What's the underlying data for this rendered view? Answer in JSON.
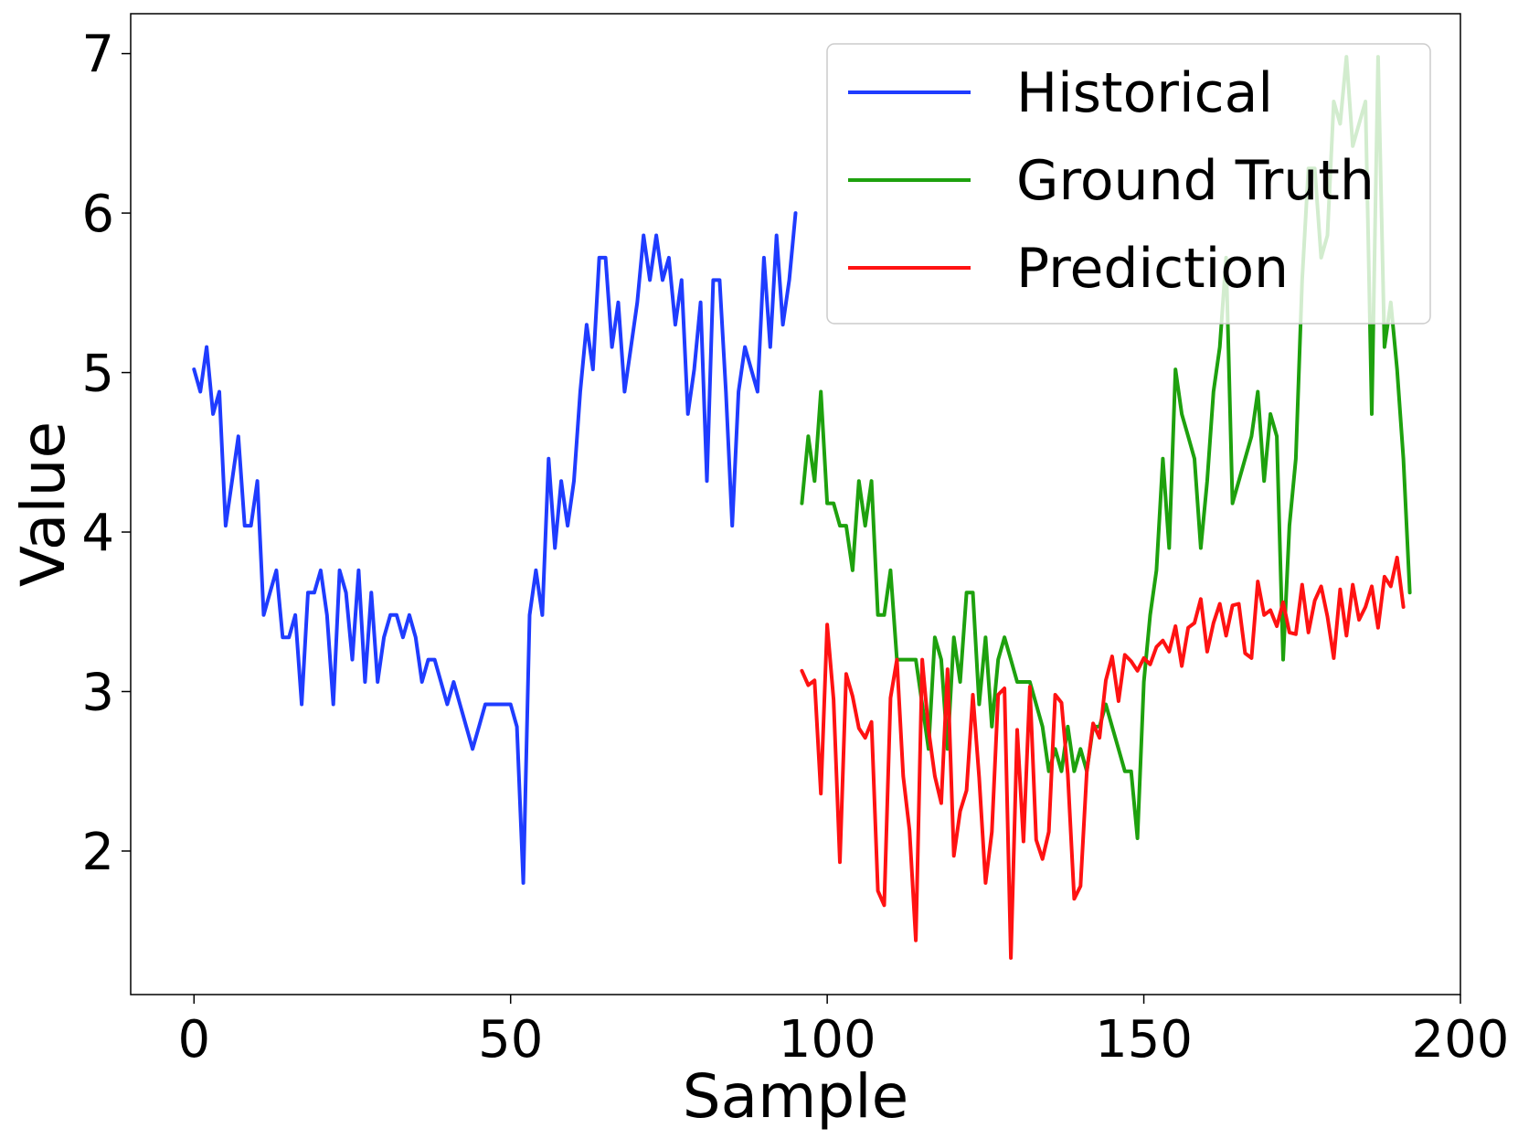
{
  "chart_data": {
    "type": "line",
    "title": "",
    "xlabel": "Sample",
    "ylabel": "Value",
    "xlim": [
      -10,
      200
    ],
    "ylim": [
      1.1,
      7.25
    ],
    "xticks": [
      0,
      50,
      100,
      150,
      200
    ],
    "yticks": [
      2,
      3,
      4,
      5,
      6,
      7
    ],
    "grid": false,
    "legend_position": "top-right",
    "series": [
      {
        "name": "Historical",
        "color": "#1f3cff",
        "x_start": 0,
        "values": [
          5.02,
          4.88,
          5.16,
          4.74,
          4.88,
          4.04,
          4.32,
          4.6,
          4.04,
          4.04,
          4.32,
          3.48,
          3.62,
          3.76,
          3.34,
          3.34,
          3.48,
          2.92,
          3.62,
          3.62,
          3.76,
          3.48,
          2.92,
          3.76,
          3.62,
          3.2,
          3.76,
          3.06,
          3.62,
          3.06,
          3.34,
          3.48,
          3.48,
          3.34,
          3.48,
          3.34,
          3.06,
          3.2,
          3.2,
          3.06,
          2.92,
          3.06,
          2.92,
          2.78,
          2.64,
          2.78,
          2.92,
          2.92,
          2.92,
          2.92,
          2.92,
          2.78,
          1.8,
          3.48,
          3.76,
          3.48,
          4.46,
          3.9,
          4.32,
          4.04,
          4.32,
          4.88,
          5.3,
          5.02,
          5.72,
          5.72,
          5.16,
          5.44,
          4.88,
          5.16,
          5.44,
          5.86,
          5.58,
          5.86,
          5.58,
          5.72,
          5.3,
          5.58,
          4.74,
          5.02,
          5.44,
          4.32,
          5.58,
          5.58,
          4.88,
          4.04,
          4.88,
          5.16,
          5.02,
          4.88,
          5.72,
          5.16,
          5.86,
          5.3,
          5.58,
          6.0
        ]
      },
      {
        "name": "Ground Truth",
        "color": "#1ea10e",
        "x_start": 96,
        "values": [
          4.18,
          4.6,
          4.32,
          4.88,
          4.18,
          4.18,
          4.04,
          4.04,
          3.76,
          4.32,
          4.04,
          4.32,
          3.48,
          3.48,
          3.76,
          3.2,
          3.2,
          3.2,
          3.2,
          2.92,
          2.64,
          3.34,
          3.2,
          2.64,
          3.34,
          3.06,
          3.62,
          3.62,
          2.92,
          3.34,
          2.78,
          3.2,
          3.34,
          3.2,
          3.06,
          3.06,
          3.06,
          2.92,
          2.78,
          2.5,
          2.64,
          2.5,
          2.78,
          2.5,
          2.64,
          2.5,
          2.78,
          2.78,
          2.92,
          2.78,
          2.64,
          2.5,
          2.5,
          2.08,
          3.06,
          3.48,
          3.76,
          4.46,
          3.9,
          5.02,
          4.74,
          4.6,
          4.46,
          3.9,
          4.32,
          4.88,
          5.16,
          5.72,
          4.18,
          4.32,
          4.46,
          4.6,
          4.88,
          4.32,
          4.74,
          4.6,
          3.2,
          4.04,
          4.46,
          5.58,
          6.28,
          6.28,
          5.72,
          5.86,
          6.7,
          6.56,
          6.98,
          6.42,
          6.56,
          6.7,
          4.74,
          6.98,
          5.16,
          5.44,
          5.02,
          4.46,
          3.62
        ]
      },
      {
        "name": "Prediction",
        "color": "#ff1212",
        "x_start": 96,
        "values": [
          3.13,
          3.04,
          3.07,
          2.36,
          3.42,
          2.95,
          1.93,
          3.11,
          2.97,
          2.77,
          2.71,
          2.81,
          1.75,
          1.66,
          2.96,
          3.2,
          2.47,
          2.13,
          1.44,
          3.2,
          2.76,
          2.47,
          2.3,
          3.14,
          1.97,
          2.25,
          2.38,
          2.98,
          2.46,
          1.8,
          2.12,
          2.98,
          3.02,
          1.33,
          2.76,
          2.06,
          3.03,
          2.07,
          1.95,
          2.12,
          2.98,
          2.93,
          2.48,
          1.7,
          1.78,
          2.5,
          2.8,
          2.71,
          3.07,
          3.22,
          2.94,
          3.23,
          3.19,
          3.13,
          3.21,
          3.17,
          3.28,
          3.32,
          3.25,
          3.41,
          3.16,
          3.4,
          3.43,
          3.58,
          3.25,
          3.43,
          3.55,
          3.35,
          3.54,
          3.55,
          3.24,
          3.21,
          3.69,
          3.48,
          3.51,
          3.41,
          3.56,
          3.37,
          3.36,
          3.67,
          3.37,
          3.57,
          3.66,
          3.47,
          3.21,
          3.64,
          3.35,
          3.67,
          3.45,
          3.53,
          3.66,
          3.4,
          3.72,
          3.66,
          3.84,
          3.53
        ]
      }
    ]
  }
}
